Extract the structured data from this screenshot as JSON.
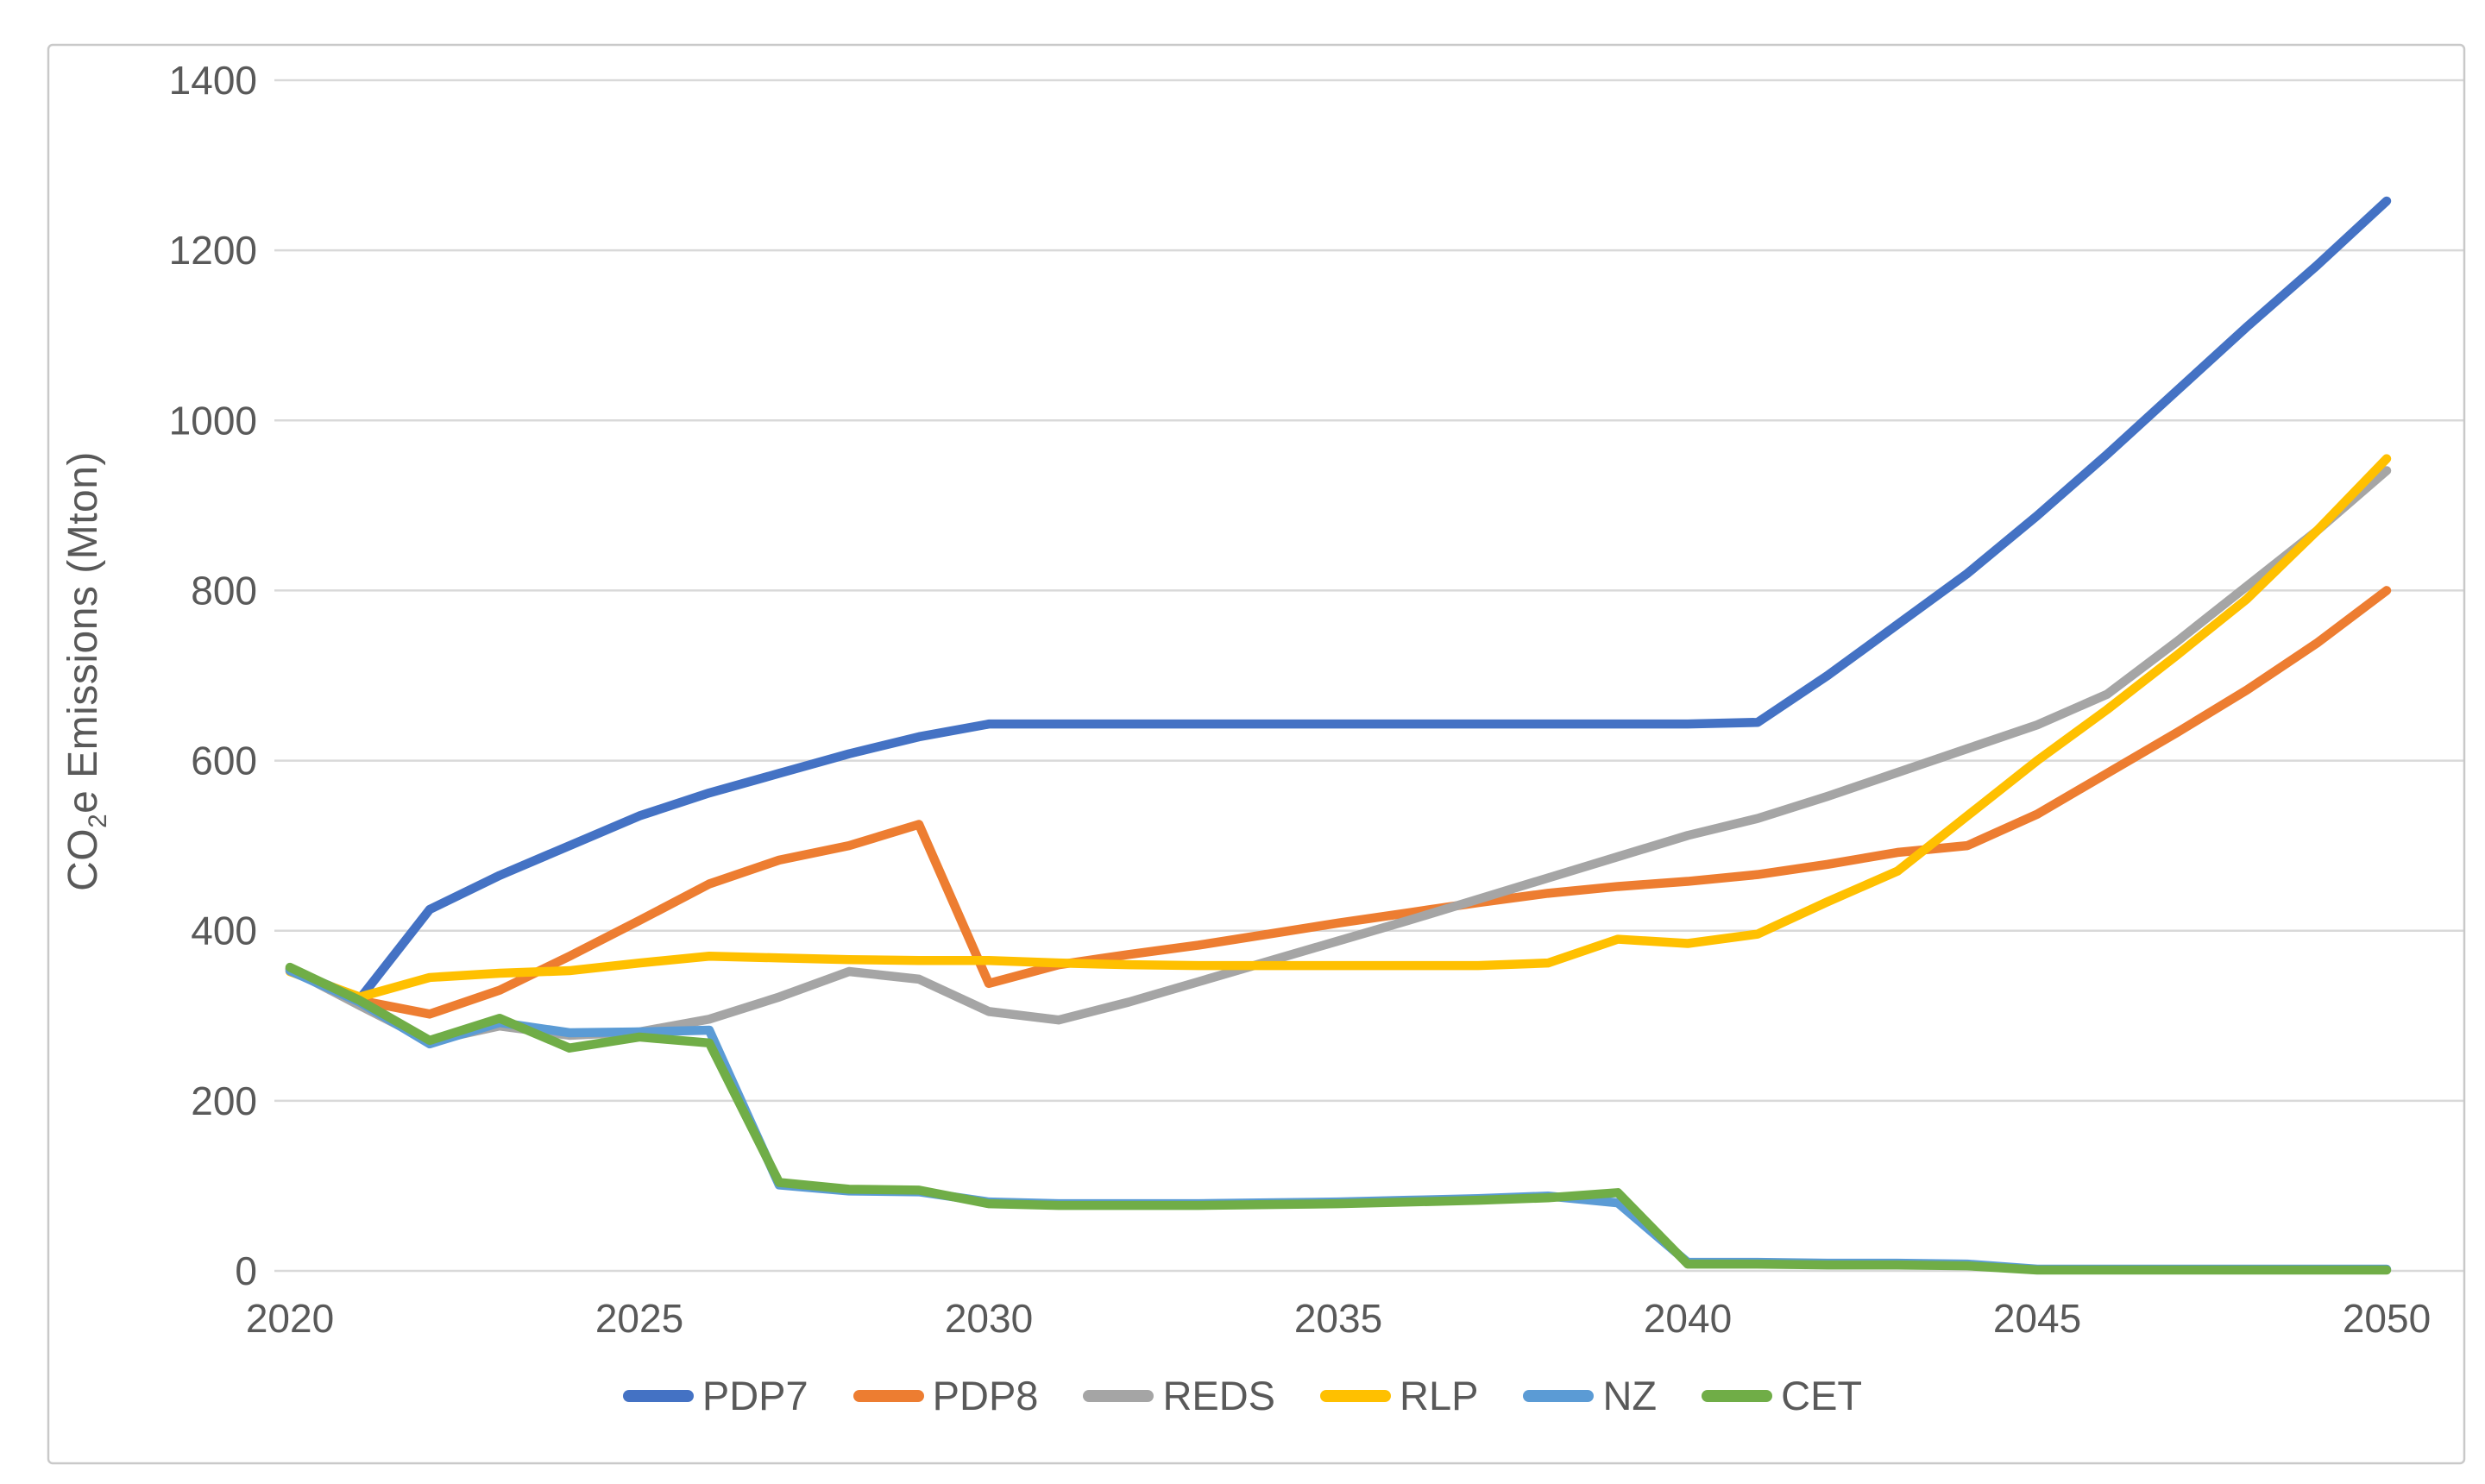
{
  "colors": {
    "background": "#FFFFFF",
    "axis_text": "#595959",
    "gridline": "#D9D9D9",
    "frame": "#C9C9C9"
  },
  "chart_data": {
    "type": "line",
    "title": "",
    "ylabel": "CO2e Emissions (Mton)",
    "ylabel_parts": {
      "pre": "CO",
      "sub": "2",
      "post": "e Emissions (Mton)"
    },
    "xlabel": "",
    "grid": "horizontal",
    "legend_position": "bottom",
    "ylim": [
      0,
      1400
    ],
    "yticks": [
      0,
      200,
      400,
      600,
      800,
      1000,
      1200,
      1400
    ],
    "xticks": [
      2020,
      2025,
      2030,
      2035,
      2040,
      2045,
      2050
    ],
    "x": [
      2020,
      2021,
      2022,
      2023,
      2024,
      2025,
      2026,
      2027,
      2028,
      2029,
      2030,
      2031,
      2032,
      2033,
      2034,
      2035,
      2036,
      2037,
      2038,
      2039,
      2040,
      2041,
      2042,
      2043,
      2044,
      2045,
      2046,
      2047,
      2048,
      2049,
      2050
    ],
    "series": [
      {
        "name": "PDP7",
        "color": "#4472C4",
        "values": [
          355,
          320,
          425,
          465,
          500,
          535,
          562,
          585,
          608,
          628,
          643,
          643,
          643,
          643,
          643,
          643,
          643,
          643,
          643,
          643,
          643,
          645,
          700,
          760,
          820,
          888,
          960,
          1035,
          1110,
          1182,
          1258
        ]
      },
      {
        "name": "PDP8",
        "color": "#ED7D31",
        "values": [
          355,
          318,
          302,
          330,
          370,
          412,
          455,
          483,
          500,
          525,
          338,
          360,
          372,
          383,
          396,
          409,
          421,
          433,
          444,
          452,
          458,
          466,
          478,
          492,
          500,
          537,
          585,
          633,
          683,
          738,
          800
        ]
      },
      {
        "name": "REDS",
        "color": "#A5A5A5",
        "values": [
          355,
          312,
          270,
          288,
          277,
          281,
          296,
          322,
          352,
          343,
          305,
          295,
          316,
          340,
          364,
          388,
          412,
          437,
          462,
          487,
          512,
          532,
          558,
          586,
          614,
          642,
          678,
          740,
          805,
          870,
          941
        ]
      },
      {
        "name": "RLP",
        "color": "#FFC000",
        "values": [
          352,
          322,
          345,
          350,
          353,
          362,
          370,
          368,
          366,
          365,
          365,
          362,
          360,
          359,
          359,
          359,
          359,
          359,
          362,
          390,
          385,
          396,
          434,
          470,
          535,
          600,
          660,
          724,
          790,
          870,
          955
        ]
      },
      {
        "name": "NZ",
        "color": "#5B9BD5",
        "values": [
          353,
          316,
          267,
          292,
          280,
          281,
          283,
          101,
          94,
          93,
          81,
          79,
          79,
          79,
          80,
          81,
          83,
          85,
          88,
          80,
          10,
          10,
          9,
          9,
          8,
          2,
          2,
          2,
          2,
          2,
          2
        ]
      },
      {
        "name": "CET",
        "color": "#70AD47",
        "values": [
          357,
          318,
          271,
          297,
          262,
          275,
          268,
          104,
          96,
          95,
          79,
          77,
          77,
          77,
          78,
          79,
          81,
          83,
          86,
          92,
          8,
          8,
          7,
          7,
          6,
          1,
          1,
          1,
          1,
          1,
          1
        ]
      }
    ]
  }
}
